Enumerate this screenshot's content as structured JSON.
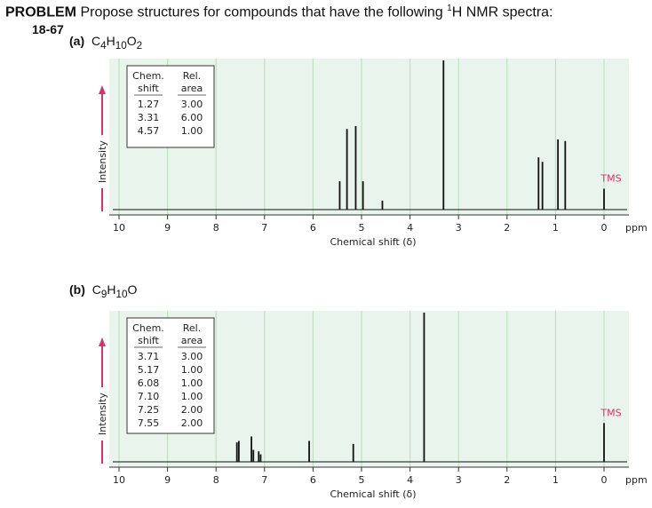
{
  "header": {
    "problem_label": "PROBLEM",
    "title_pre": "Propose structures for compounds that have the following ",
    "title_sup": "1",
    "title_post": "H NMR spectra:",
    "problem_number": "18-67"
  },
  "colors": {
    "plot_bg": "#e8f4ec",
    "gridline": "#b9deb9",
    "arrow": "#d6336c",
    "tms_label": "#d6336c",
    "spectrum": "#111111"
  },
  "chart_data": [
    {
      "type": "line",
      "panel_label": "(a)",
      "formula": "C4H10O2",
      "formula_parts": [
        "C",
        "4",
        "H",
        "10",
        "O",
        "2"
      ],
      "xlabel": "Chemical shift (δ)",
      "x_unit": "ppm",
      "ylabel": "Intensity",
      "xlim": [
        10,
        0
      ],
      "x_ticks": [
        "10",
        "9",
        "8",
        "7",
        "6",
        "5",
        "4",
        "3",
        "2",
        "1",
        "0"
      ],
      "tms_label": "TMS",
      "table": {
        "col1_header": [
          "Chem.",
          "shift"
        ],
        "col2_header": [
          "Rel.",
          "area"
        ],
        "shifts": [
          "1.27",
          "3.31",
          "4.57"
        ],
        "areas": [
          "3.00",
          "6.00",
          "1.00"
        ]
      },
      "peaks": [
        {
          "ppm": 5.45,
          "height": 0.19
        },
        {
          "ppm": 5.3,
          "height": 0.54
        },
        {
          "ppm": 5.12,
          "height": 0.56
        },
        {
          "ppm": 4.97,
          "height": 0.19
        },
        {
          "ppm": 4.57,
          "height": 0.06
        },
        {
          "ppm": 3.31,
          "height": 1.0
        },
        {
          "ppm": 1.35,
          "height": 0.35
        },
        {
          "ppm": 1.27,
          "height": 0.32
        },
        {
          "ppm": 0.95,
          "height": 0.47
        },
        {
          "ppm": 0.8,
          "height": 0.46
        },
        {
          "ppm": 0.0,
          "height": 0.14
        }
      ]
    },
    {
      "type": "line",
      "panel_label": "(b)",
      "formula": "C9H10O",
      "formula_parts": [
        "C",
        "9",
        "H",
        "10",
        "O",
        ""
      ],
      "xlabel": "Chemical shift (δ)",
      "x_unit": "ppm",
      "ylabel": "Intensity",
      "xlim": [
        10,
        0
      ],
      "x_ticks": [
        "10",
        "9",
        "8",
        "7",
        "6",
        "5",
        "4",
        "3",
        "2",
        "1",
        "0"
      ],
      "tms_label": "TMS",
      "table": {
        "col1_header": [
          "Chem.",
          "shift"
        ],
        "col2_header": [
          "Rel.",
          "area"
        ],
        "shifts": [
          "3.71",
          "5.17",
          "6.08",
          "7.10",
          "7.25",
          "7.55"
        ],
        "areas": [
          "3.00",
          "1.00",
          "1.00",
          "1.00",
          "2.00",
          "2.00"
        ]
      },
      "peaks": [
        {
          "ppm": 7.57,
          "height": 0.13
        },
        {
          "ppm": 7.53,
          "height": 0.14
        },
        {
          "ppm": 7.27,
          "height": 0.17
        },
        {
          "ppm": 7.23,
          "height": 0.08
        },
        {
          "ppm": 7.12,
          "height": 0.07
        },
        {
          "ppm": 7.08,
          "height": 0.05
        },
        {
          "ppm": 6.08,
          "height": 0.14
        },
        {
          "ppm": 5.17,
          "height": 0.12
        },
        {
          "ppm": 3.71,
          "height": 1.0
        },
        {
          "ppm": 0.0,
          "height": 0.26
        }
      ]
    }
  ]
}
